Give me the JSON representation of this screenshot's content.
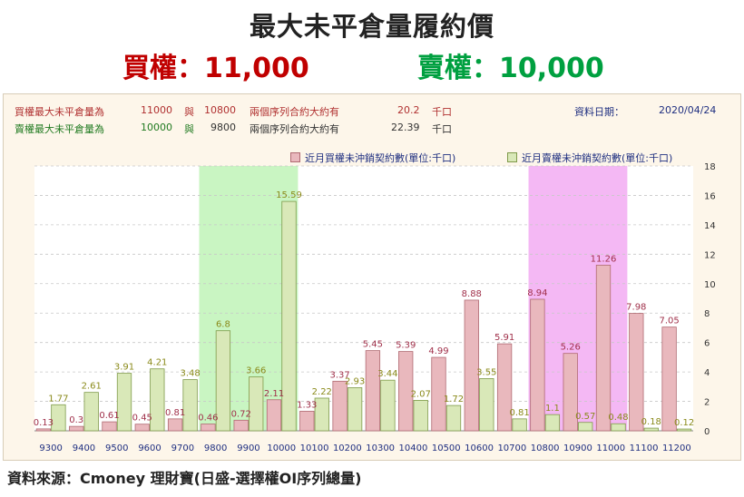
{
  "header": {
    "title": "最大未平倉量履約價",
    "call_label": "買權：11,000",
    "put_label": "賣權：10,000"
  },
  "info": {
    "row1": {
      "label": "買權最大未平倉量為",
      "v1": "11000",
      "conj": "與",
      "v2": "10800",
      "text": "兩個序列合約大約有",
      "amount": "20.2",
      "unit": "千口"
    },
    "row2": {
      "label": "賣權最大未平倉量為",
      "v1": "10000",
      "conj": "與",
      "v2": "9800",
      "text": "兩個序列合約大約有",
      "amount": "22.39",
      "unit": "千口"
    },
    "date_label": "資料日期：",
    "date_value": "2020/04/24"
  },
  "legend": {
    "call": "近月買權未沖銷契約數(單位:千口)",
    "put": "近月賣權未沖銷契約數(單位:千口)"
  },
  "colors": {
    "call_fill": "#e9b8bd",
    "call_stroke": "#b06a72",
    "call_label": "#a0304a",
    "put_fill": "#d9e8b8",
    "put_stroke": "#7f9a4a",
    "put_label": "#8a8a1a",
    "green_band": "#c9f5c2",
    "pink_band": "#f4b8f4",
    "x_tick": "#1f2f80"
  },
  "chart_data": {
    "type": "bar",
    "categories": [
      "9300",
      "9400",
      "9500",
      "9600",
      "9700",
      "9800",
      "9900",
      "10000",
      "10100",
      "10200",
      "10300",
      "10400",
      "10500",
      "10600",
      "10700",
      "10800",
      "10900",
      "11000",
      "11100",
      "11200"
    ],
    "series": [
      {
        "name": "近月買權未沖銷契約數(單位:千口)",
        "values": [
          0.13,
          0.3,
          0.61,
          0.45,
          0.81,
          0.46,
          0.72,
          2.11,
          1.33,
          3.37,
          5.45,
          5.39,
          4.99,
          8.88,
          5.91,
          8.94,
          5.26,
          11.26,
          7.98,
          7.05
        ]
      },
      {
        "name": "近月賣權未沖銷契約數(單位:千口)",
        "values": [
          1.77,
          2.61,
          3.91,
          4.21,
          3.48,
          6.8,
          3.66,
          15.59,
          2.22,
          2.93,
          3.44,
          2.07,
          1.72,
          3.55,
          0.81,
          1.1,
          0.57,
          0.48,
          0.18,
          0.12
        ]
      }
    ],
    "y_ticks": [
      "0",
      "2",
      "4",
      "6",
      "8",
      "10",
      "12",
      "14",
      "16",
      "18"
    ],
    "ylim": [
      0,
      18
    ],
    "highlight_bands": [
      {
        "from": "9800",
        "to": "10000",
        "color": "green"
      },
      {
        "from": "10800",
        "to": "11000",
        "color": "pink"
      }
    ]
  },
  "footer": "資料來源：Cmoney 理財寶(日盛-選擇權OI序列總量)"
}
